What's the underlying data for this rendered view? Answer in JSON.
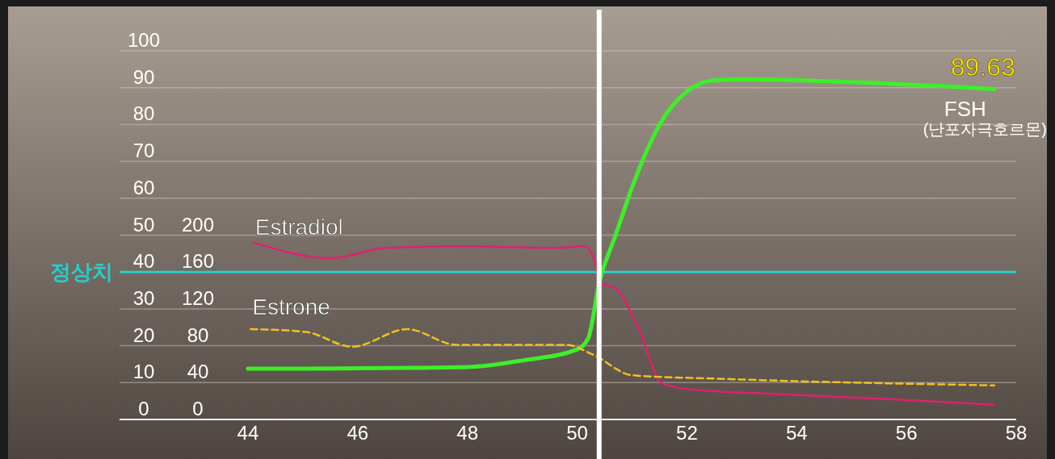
{
  "chart_data": {
    "type": "line",
    "xlim": [
      41.66,
      58
    ],
    "xticks": [
      44,
      46,
      48,
      50,
      52,
      54,
      56,
      58
    ],
    "ylim": [
      0,
      100
    ],
    "yticks": [
      0,
      10,
      20,
      30,
      40,
      50,
      60,
      70,
      80,
      90,
      100
    ],
    "y2lim": [
      0,
      400
    ],
    "y2ticks": [
      0,
      40,
      80,
      120,
      160,
      200
    ],
    "grid": "y",
    "marker": "none",
    "series": [
      {
        "name": "FSH",
        "color": "#3cf028",
        "line_style": "solid",
        "x": [
          44,
          45,
          46,
          47,
          48,
          49,
          50,
          50.2,
          50.4,
          50.7,
          51,
          51.5,
          52,
          52.5,
          53,
          55,
          57.6
        ],
        "values": [
          13.8,
          13.8,
          13.9,
          14,
          14.2,
          16,
          19,
          22,
          37,
          50,
          63,
          80,
          89,
          92,
          92.3,
          91.5,
          89.63
        ]
      },
      {
        "name": "Estradiol",
        "color": "#e0206f",
        "axis": "y2",
        "line_style": "solid",
        "x": [
          44.1,
          45.5,
          46.5,
          48,
          49.6,
          50.15,
          50.3,
          50.45,
          50.7,
          51.1,
          51.55,
          52,
          53.5,
          55.7,
          57.6
        ],
        "values": [
          192,
          175,
          186,
          188,
          186,
          188,
          175,
          147,
          142,
          101,
          39,
          33,
          28,
          22,
          16
        ]
      },
      {
        "name": "Estrone",
        "color": "#f0c020",
        "axis": "y2",
        "line_style": "dashed",
        "x": [
          44.05,
          45.05,
          45.9,
          46.9,
          47.8,
          49.8,
          50.3,
          51,
          52.7,
          57.6
        ],
        "values": [
          98,
          95,
          79,
          98,
          81,
          81,
          70,
          48,
          44,
          37
        ]
      }
    ],
    "ref_lines": [
      {
        "axis": "y",
        "value": 40,
        "label": "정상치",
        "color": "#22d0d0"
      },
      {
        "axis": "x",
        "value": 50.4,
        "color": "#ffffff"
      }
    ],
    "annotations": [
      {
        "text": "89.63",
        "x": 57.6,
        "y": 89.63
      },
      "(난포자극호르몬)"
    ]
  }
}
